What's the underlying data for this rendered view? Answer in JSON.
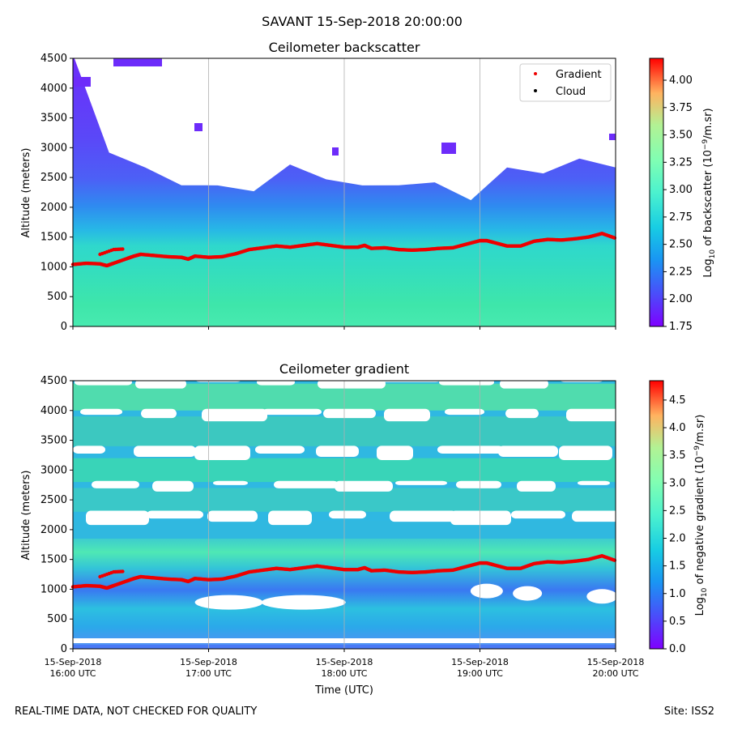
{
  "suptitle": "SAVANT 15-Sep-2018 20:00:00",
  "footer_left": "REAL-TIME DATA, NOT CHECKED FOR QUALITY",
  "footer_right": "Site: ISS2",
  "time_axis": {
    "xlabel": "Time (UTC)",
    "tick_dates": [
      "15-Sep-2018",
      "15-Sep-2018",
      "15-Sep-2018",
      "15-Sep-2018",
      "15-Sep-2018"
    ],
    "tick_times": [
      "16:00 UTC",
      "17:00 UTC",
      "18:00 UTC",
      "19:00 UTC",
      "20:00 UTC"
    ],
    "xlim_hours": [
      16,
      20
    ]
  },
  "layer_height": {
    "name": "Gradient",
    "color": "#ee0000",
    "times_h": [
      16.0,
      16.1,
      16.2,
      16.25,
      16.3,
      16.4,
      16.45,
      16.5,
      16.6,
      16.7,
      16.8,
      16.85,
      16.9,
      17.0,
      17.1,
      17.2,
      17.3,
      17.4,
      17.5,
      17.6,
      17.7,
      17.8,
      17.9,
      18.0,
      18.1,
      18.15,
      18.2,
      18.3,
      18.4,
      18.5,
      18.6,
      18.7,
      18.8,
      18.9,
      19.0,
      19.05,
      19.1,
      19.2,
      19.3,
      19.4,
      19.5,
      19.6,
      19.7,
      19.8,
      19.9,
      20.0
    ],
    "altitude_m": [
      1040,
      1060,
      1050,
      1020,
      1060,
      1140,
      1180,
      1210,
      1190,
      1170,
      1160,
      1130,
      1180,
      1160,
      1170,
      1220,
      1290,
      1320,
      1350,
      1330,
      1360,
      1390,
      1360,
      1330,
      1330,
      1360,
      1310,
      1320,
      1290,
      1280,
      1290,
      1310,
      1320,
      1380,
      1440,
      1440,
      1410,
      1350,
      1350,
      1430,
      1460,
      1450,
      1470,
      1500,
      1560,
      1480
    ],
    "early_segment_times_h": [
      16.2,
      16.3,
      16.38
    ],
    "early_segment_altitude_m": [
      1210,
      1290,
      1300
    ]
  },
  "chart_data": [
    {
      "type": "heatmap",
      "title": "Ceilometer backscatter",
      "ylabel": "Altitude (meters)",
      "xlabel": "",
      "ylim": [
        0,
        4500
      ],
      "yticks": [
        "0",
        "500",
        "1000",
        "1500",
        "2000",
        "2500",
        "3000",
        "3500",
        "4000",
        "4500"
      ],
      "legend": [
        "Gradient",
        "Cloud"
      ],
      "legend_position": "top-right",
      "colorbar": {
        "label": "Log10 of backscatter (10^-9/m.sr)",
        "label_main": "Log",
        "label_sub": "10",
        "label_mid": " of backscatter (10",
        "label_sup": "−9",
        "label_tail": "/m.sr)",
        "range": [
          1.75,
          4.2
        ],
        "ticks": [
          "1.75",
          "2.00",
          "2.25",
          "2.50",
          "2.75",
          "3.00",
          "3.25",
          "3.50",
          "3.75",
          "4.00"
        ]
      },
      "signal_top_m": [
        4500,
        3000,
        2600,
        2450,
        2300,
        2350,
        2650,
        2550,
        2300,
        2450,
        2350,
        2200,
        2600,
        2650,
        2750,
        2750
      ],
      "background_colors": [
        "#3fe8a6",
        "#2cd9c8",
        "#26c3de",
        "#2c8ff0",
        "#4a5df7",
        "#6a2cfa"
      ],
      "cloud_points": []
    },
    {
      "type": "heatmap",
      "title": "Ceilometer gradient",
      "ylabel": "Altitude (meters)",
      "xlabel": "Time (UTC)",
      "ylim": [
        0,
        4500
      ],
      "yticks": [
        "0",
        "500",
        "1000",
        "1500",
        "2000",
        "2500",
        "3000",
        "3500",
        "4000",
        "4500"
      ],
      "colorbar": {
        "label": "Log10 of negative gradient (10^-9/m.sr)",
        "label_main": "Log",
        "label_sub": "10",
        "label_mid": " of negative gradient (10",
        "label_sup": "−9",
        "label_tail": "/m.sr)",
        "range": [
          0.0,
          4.85
        ],
        "ticks": [
          "0.0",
          "0.5",
          "1.0",
          "1.5",
          "2.0",
          "2.5",
          "3.0",
          "3.5",
          "4.0",
          "4.5"
        ]
      },
      "bands_m": [
        {
          "from": 2800,
          "to": 3200,
          "color": "#39d4b8"
        },
        {
          "from": 2300,
          "to": 2700,
          "color": "#3ac8c8"
        },
        {
          "from": 1850,
          "to": 2150,
          "color": "#30b8e0"
        },
        {
          "from": 3400,
          "to": 3900,
          "color": "#3cc8c0"
        },
        {
          "from": 4000,
          "to": 4450,
          "color": "#50dcae"
        }
      ]
    }
  ]
}
